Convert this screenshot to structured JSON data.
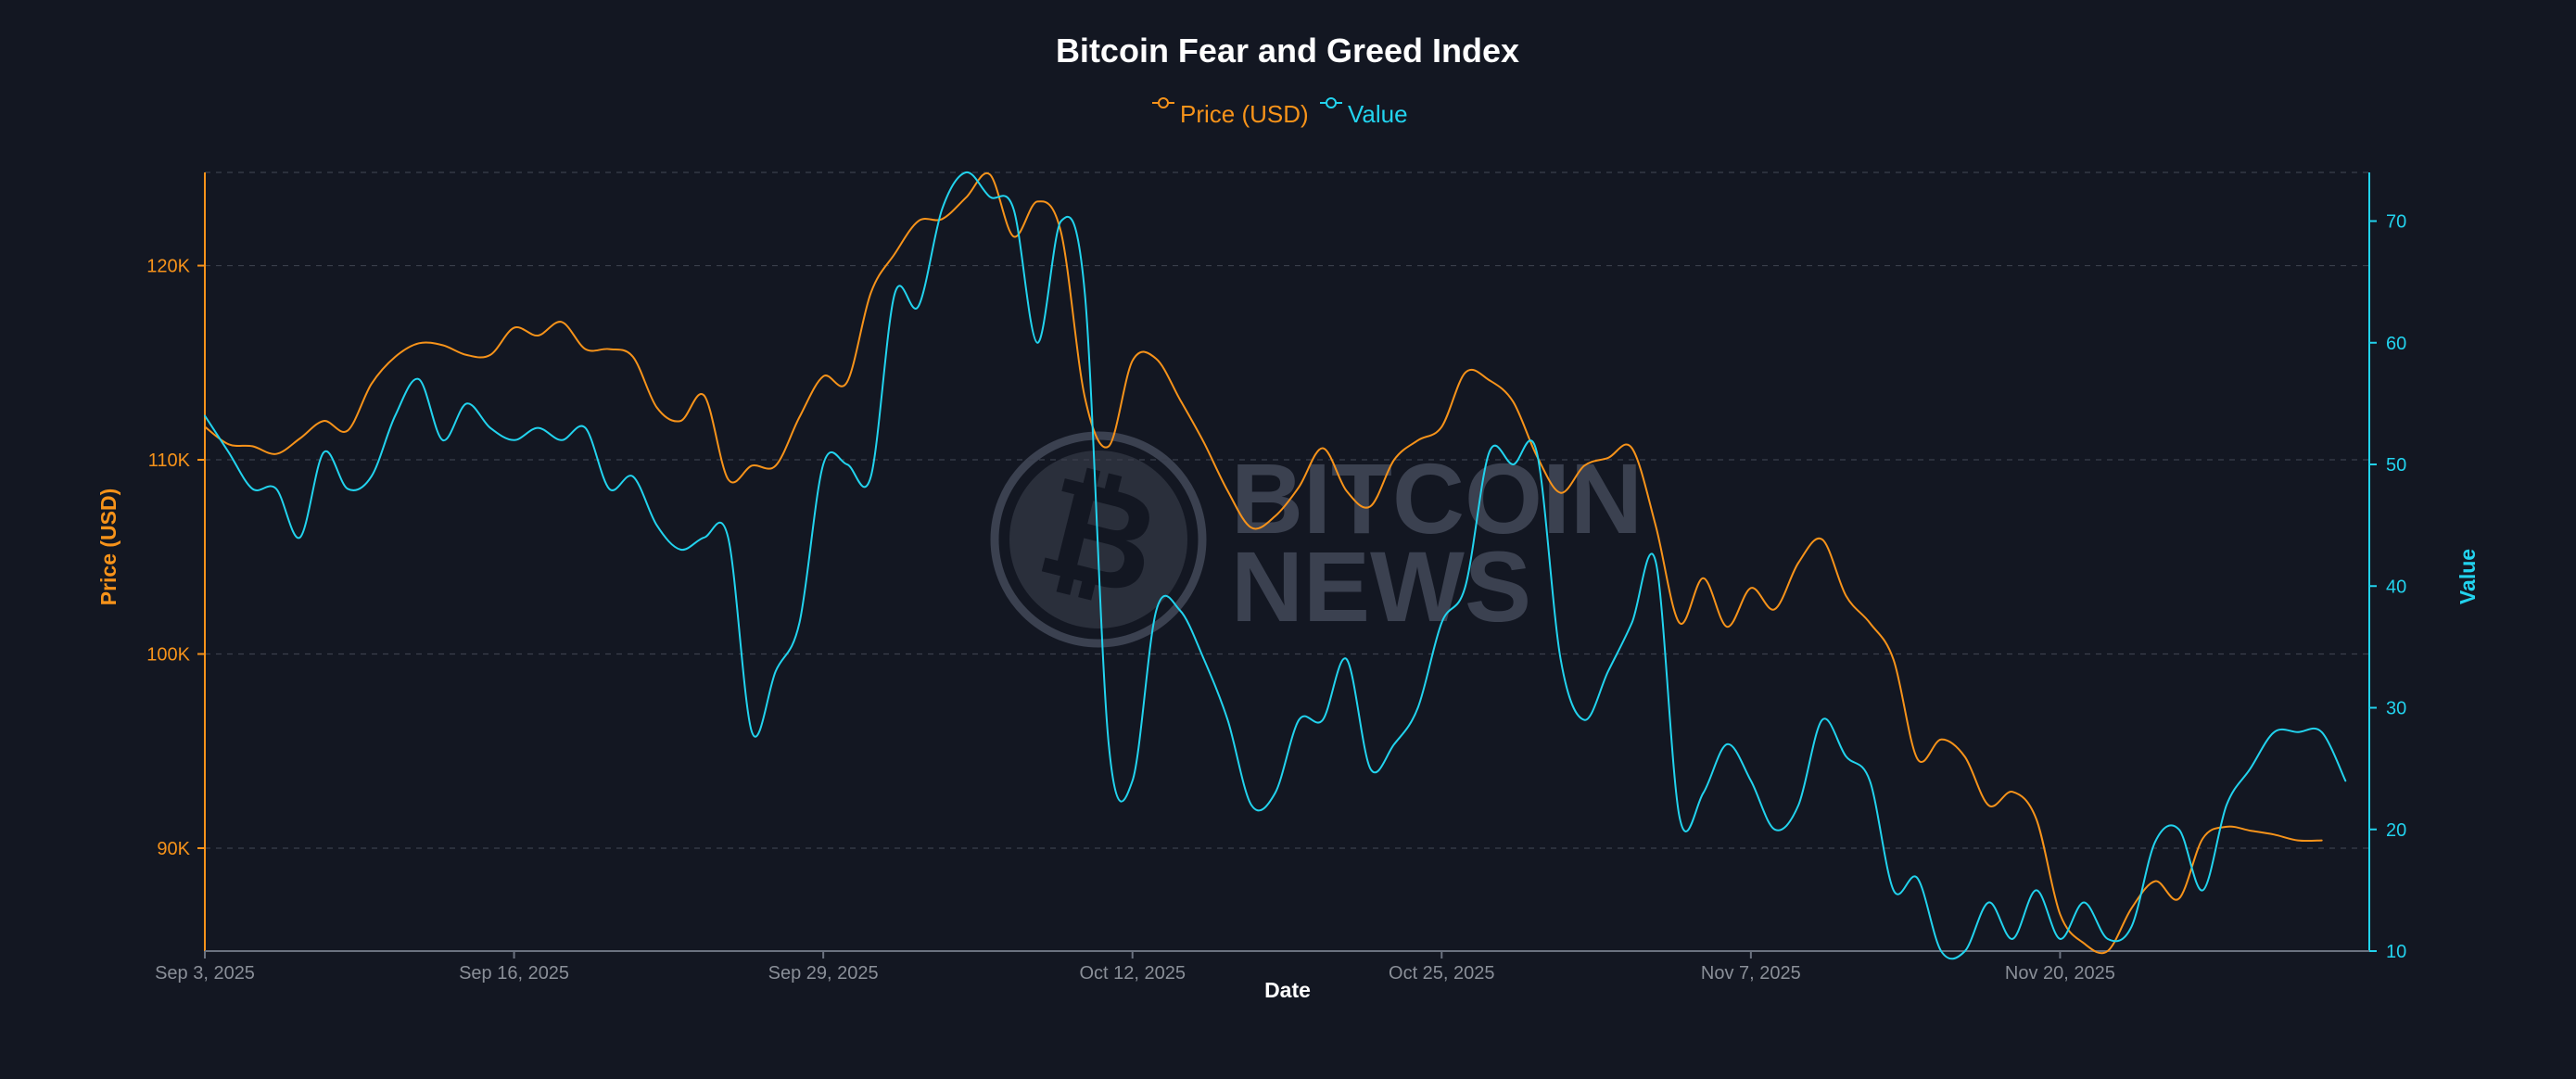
{
  "colors": {
    "background": "#131722",
    "price": "#f7931a",
    "value": "#22d3ee",
    "text": "#ffffff",
    "tick": "#8a8f98",
    "grid": "#3a3f4b",
    "watermark": "#3b4150"
  },
  "watermark": {
    "line1": "BITCOIN",
    "line2": "NEWS",
    "icon": "bitcoin-logo-icon"
  },
  "chart_data": {
    "type": "line",
    "title": "Bitcoin Fear and Greed Index",
    "xlabel": "Date",
    "y_left_label": "Price (USD)",
    "y_right_label": "Value",
    "legend_placement": "top-center",
    "grid": true,
    "x_start": "2025-09-03",
    "x_end": "2025-12-03",
    "x_ticks": [
      {
        "date": "2025-09-03",
        "label": "Sep 3, 2025"
      },
      {
        "date": "2025-09-16",
        "label": "Sep 16, 2025"
      },
      {
        "date": "2025-09-29",
        "label": "Sep 29, 2025"
      },
      {
        "date": "2025-10-12",
        "label": "Oct 12, 2025"
      },
      {
        "date": "2025-10-25",
        "label": "Oct 25, 2025"
      },
      {
        "date": "2025-11-07",
        "label": "Nov 7, 2025"
      },
      {
        "date": "2025-11-20",
        "label": "Nov 20, 2025"
      }
    ],
    "y_left": {
      "range": [
        84700,
        124800
      ],
      "ticks": [
        {
          "value": 90000,
          "label": "90K"
        },
        {
          "value": 100000,
          "label": "100K"
        },
        {
          "value": 110000,
          "label": "110K"
        },
        {
          "value": 120000,
          "label": "120K"
        }
      ]
    },
    "y_right": {
      "range": [
        10,
        74
      ],
      "ticks": [
        {
          "value": 10,
          "label": "10"
        },
        {
          "value": 20,
          "label": "20"
        },
        {
          "value": 30,
          "label": "30"
        },
        {
          "value": 40,
          "label": "40"
        },
        {
          "value": 50,
          "label": "50"
        },
        {
          "value": 60,
          "label": "60"
        },
        {
          "value": 70,
          "label": "70"
        }
      ]
    },
    "series": [
      {
        "name": "Price (USD)",
        "axis": "left",
        "points": [
          [
            "2025-09-03",
            111700
          ],
          [
            "2025-09-04",
            110800
          ],
          [
            "2025-09-05",
            110700
          ],
          [
            "2025-09-06",
            110300
          ],
          [
            "2025-09-07",
            111100
          ],
          [
            "2025-09-08",
            112000
          ],
          [
            "2025-09-09",
            111500
          ],
          [
            "2025-09-10",
            113900
          ],
          [
            "2025-09-11",
            115300
          ],
          [
            "2025-09-12",
            116000
          ],
          [
            "2025-09-13",
            115900
          ],
          [
            "2025-09-14",
            115400
          ],
          [
            "2025-09-15",
            115400
          ],
          [
            "2025-09-16",
            116800
          ],
          [
            "2025-09-17",
            116400
          ],
          [
            "2025-09-18",
            117100
          ],
          [
            "2025-09-19",
            115700
          ],
          [
            "2025-09-20",
            115700
          ],
          [
            "2025-09-21",
            115300
          ],
          [
            "2025-09-22",
            112700
          ],
          [
            "2025-09-23",
            112000
          ],
          [
            "2025-09-24",
            113300
          ],
          [
            "2025-09-25",
            109000
          ],
          [
            "2025-09-26",
            109700
          ],
          [
            "2025-09-27",
            109700
          ],
          [
            "2025-09-28",
            112200
          ],
          [
            "2025-09-29",
            114300
          ],
          [
            "2025-09-30",
            114000
          ],
          [
            "2025-10-01",
            118600
          ],
          [
            "2025-10-02",
            120600
          ],
          [
            "2025-10-03",
            122300
          ],
          [
            "2025-10-04",
            122400
          ],
          [
            "2025-10-05",
            123500
          ],
          [
            "2025-10-06",
            124700
          ],
          [
            "2025-10-07",
            121500
          ],
          [
            "2025-10-08",
            123300
          ],
          [
            "2025-10-09",
            121700
          ],
          [
            "2025-10-10",
            113200
          ],
          [
            "2025-10-11",
            110700
          ],
          [
            "2025-10-12",
            115100
          ],
          [
            "2025-10-13",
            115200
          ],
          [
            "2025-10-14",
            113100
          ],
          [
            "2025-10-15",
            110900
          ],
          [
            "2025-10-16",
            108400
          ],
          [
            "2025-10-17",
            106500
          ],
          [
            "2025-10-18",
            107100
          ],
          [
            "2025-10-19",
            108600
          ],
          [
            "2025-10-20",
            110600
          ],
          [
            "2025-10-21",
            108400
          ],
          [
            "2025-10-22",
            107600
          ],
          [
            "2025-10-23",
            110000
          ],
          [
            "2025-10-24",
            111000
          ],
          [
            "2025-10-25",
            111700
          ],
          [
            "2025-10-26",
            114500
          ],
          [
            "2025-10-27",
            114100
          ],
          [
            "2025-10-28",
            113000
          ],
          [
            "2025-10-29",
            110200
          ],
          [
            "2025-10-30",
            108300
          ],
          [
            "2025-10-31",
            109700
          ],
          [
            "2025-11-01",
            110100
          ],
          [
            "2025-11-02",
            110600
          ],
          [
            "2025-11-03",
            106600
          ],
          [
            "2025-11-04",
            101600
          ],
          [
            "2025-11-05",
            103900
          ],
          [
            "2025-11-06",
            101400
          ],
          [
            "2025-11-07",
            103400
          ],
          [
            "2025-11-08",
            102300
          ],
          [
            "2025-11-09",
            104700
          ],
          [
            "2025-11-10",
            105900
          ],
          [
            "2025-11-11",
            103000
          ],
          [
            "2025-11-12",
            101600
          ],
          [
            "2025-11-13",
            99700
          ],
          [
            "2025-11-14",
            94600
          ],
          [
            "2025-11-15",
            95600
          ],
          [
            "2025-11-16",
            94700
          ],
          [
            "2025-11-17",
            92200
          ],
          [
            "2025-11-18",
            92900
          ],
          [
            "2025-11-19",
            91500
          ],
          [
            "2025-11-20",
            86600
          ],
          [
            "2025-11-21",
            85100
          ],
          [
            "2025-11-22",
            84700
          ],
          [
            "2025-11-23",
            86900
          ],
          [
            "2025-11-24",
            88300
          ],
          [
            "2025-11-25",
            87400
          ],
          [
            "2025-11-26",
            90500
          ],
          [
            "2025-11-27",
            91100
          ],
          [
            "2025-11-28",
            90900
          ],
          [
            "2025-11-29",
            90700
          ],
          [
            "2025-11-30",
            90400
          ],
          [
            "2025-12-01",
            90400
          ]
        ]
      },
      {
        "name": "Value",
        "axis": "right",
        "points": [
          [
            "2025-09-03",
            54
          ],
          [
            "2025-09-04",
            51
          ],
          [
            "2025-09-05",
            48
          ],
          [
            "2025-09-06",
            48
          ],
          [
            "2025-09-07",
            44
          ],
          [
            "2025-09-08",
            51
          ],
          [
            "2025-09-09",
            48
          ],
          [
            "2025-09-10",
            49
          ],
          [
            "2025-09-11",
            54
          ],
          [
            "2025-09-12",
            57
          ],
          [
            "2025-09-13",
            52
          ],
          [
            "2025-09-14",
            55
          ],
          [
            "2025-09-15",
            53
          ],
          [
            "2025-09-16",
            52
          ],
          [
            "2025-09-17",
            53
          ],
          [
            "2025-09-18",
            52
          ],
          [
            "2025-09-19",
            53
          ],
          [
            "2025-09-20",
            48
          ],
          [
            "2025-09-21",
            49
          ],
          [
            "2025-09-22",
            45
          ],
          [
            "2025-09-23",
            43
          ],
          [
            "2025-09-24",
            44
          ],
          [
            "2025-09-25",
            44
          ],
          [
            "2025-09-26",
            28
          ],
          [
            "2025-09-27",
            33
          ],
          [
            "2025-09-28",
            37
          ],
          [
            "2025-09-29",
            50
          ],
          [
            "2025-09-30",
            50
          ],
          [
            "2025-10-01",
            49
          ],
          [
            "2025-10-02",
            64
          ],
          [
            "2025-10-03",
            63
          ],
          [
            "2025-10-04",
            71
          ],
          [
            "2025-10-05",
            74
          ],
          [
            "2025-10-06",
            72
          ],
          [
            "2025-10-07",
            71
          ],
          [
            "2025-10-08",
            60
          ],
          [
            "2025-10-09",
            70
          ],
          [
            "2025-10-10",
            64
          ],
          [
            "2025-10-11",
            27
          ],
          [
            "2025-10-12",
            24
          ],
          [
            "2025-10-13",
            38
          ],
          [
            "2025-10-14",
            38
          ],
          [
            "2025-10-15",
            34
          ],
          [
            "2025-10-16",
            29
          ],
          [
            "2025-10-17",
            22
          ],
          [
            "2025-10-18",
            23
          ],
          [
            "2025-10-19",
            29
          ],
          [
            "2025-10-20",
            29
          ],
          [
            "2025-10-21",
            34
          ],
          [
            "2025-10-22",
            25
          ],
          [
            "2025-10-23",
            27
          ],
          [
            "2025-10-24",
            30
          ],
          [
            "2025-10-25",
            37
          ],
          [
            "2025-10-26",
            40
          ],
          [
            "2025-10-27",
            51
          ],
          [
            "2025-10-28",
            50
          ],
          [
            "2025-10-29",
            51
          ],
          [
            "2025-10-30",
            34
          ],
          [
            "2025-10-31",
            29
          ],
          [
            "2025-11-01",
            33
          ],
          [
            "2025-11-02",
            37
          ],
          [
            "2025-11-03",
            42
          ],
          [
            "2025-11-04",
            21
          ],
          [
            "2025-11-05",
            23
          ],
          [
            "2025-11-06",
            27
          ],
          [
            "2025-11-07",
            24
          ],
          [
            "2025-11-08",
            20
          ],
          [
            "2025-11-09",
            22
          ],
          [
            "2025-11-10",
            29
          ],
          [
            "2025-11-11",
            26
          ],
          [
            "2025-11-12",
            24
          ],
          [
            "2025-11-13",
            15
          ],
          [
            "2025-11-14",
            16
          ],
          [
            "2025-11-15",
            10
          ],
          [
            "2025-11-16",
            10
          ],
          [
            "2025-11-17",
            14
          ],
          [
            "2025-11-18",
            11
          ],
          [
            "2025-11-19",
            15
          ],
          [
            "2025-11-20",
            11
          ],
          [
            "2025-11-21",
            14
          ],
          [
            "2025-11-22",
            11
          ],
          [
            "2025-11-23",
            12
          ],
          [
            "2025-11-24",
            19
          ],
          [
            "2025-11-25",
            20
          ],
          [
            "2025-11-26",
            15
          ],
          [
            "2025-11-27",
            22
          ],
          [
            "2025-11-28",
            25
          ],
          [
            "2025-11-29",
            28
          ],
          [
            "2025-11-30",
            28
          ],
          [
            "2025-12-01",
            28
          ],
          [
            "2025-12-02",
            24
          ]
        ]
      }
    ]
  }
}
